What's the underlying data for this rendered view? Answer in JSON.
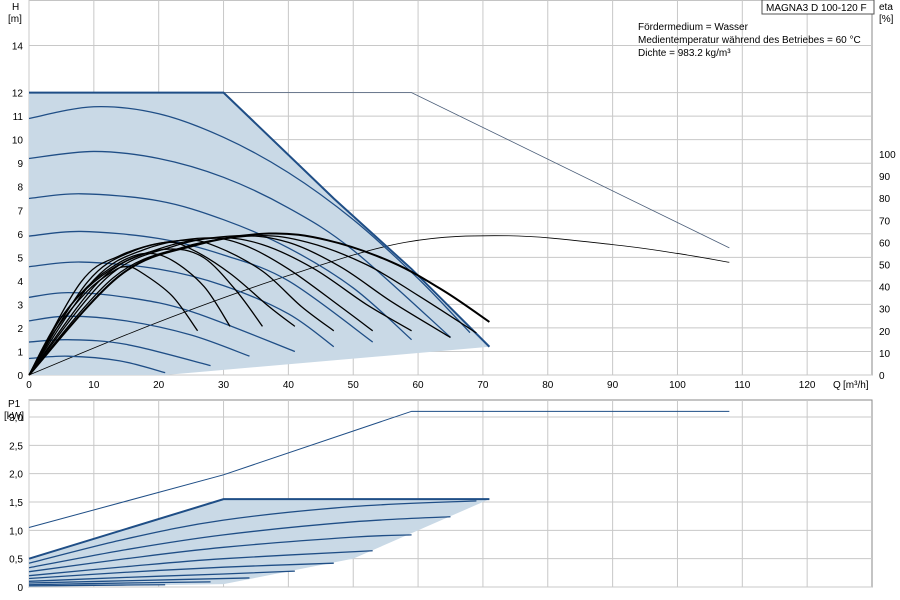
{
  "model_label": "MAGNA3 D 100-120 F",
  "medium_info": [
    "Fördermedium = Wasser",
    "Medientemperatur während des Betriebes = 60 °C",
    "Dichte = 983.2 kg/m³"
  ],
  "colors": {
    "area_fill": "#c9d9e6",
    "curve_blue": "#1f4e86",
    "curve_black": "#000000",
    "reference": "#4a5d78",
    "grid": "#c8c8c8"
  },
  "chart_data": [
    {
      "type": "line",
      "name": "head-chart",
      "ylabel": "H",
      "yunit": "[m]",
      "y2label": "eta",
      "y2unit": "[%]",
      "xlabel": "Q",
      "xunit": "[m³/h]",
      "xlim": [
        0,
        130
      ],
      "ylim": [
        0,
        15
      ],
      "y2lim": [
        0,
        100
      ],
      "x_ticks": [
        0,
        10,
        20,
        30,
        40,
        50,
        60,
        70,
        80,
        90,
        100,
        110,
        120
      ],
      "y_ticks": [
        0,
        1,
        2,
        3,
        4,
        5,
        6,
        7,
        8,
        9,
        10,
        11,
        12,
        14
      ],
      "y2_ticks": [
        0,
        10,
        20,
        30,
        40,
        50,
        60,
        70,
        80,
        90,
        100
      ],
      "grid": true,
      "operating_area": [
        [
          0,
          12
        ],
        [
          30,
          12
        ],
        [
          71,
          1.2
        ],
        [
          21,
          0
        ],
        [
          0,
          0
        ]
      ],
      "pump_curves": [
        [
          [
            0,
            12
          ],
          [
            30,
            12
          ],
          [
            47,
            7.5
          ],
          [
            59,
            4.5
          ],
          [
            71,
            1.2
          ]
        ],
        [
          [
            0,
            10.9
          ],
          [
            10,
            11.4
          ],
          [
            20,
            11.1
          ],
          [
            30,
            10.1
          ],
          [
            40,
            8.6
          ],
          [
            50,
            6.6
          ],
          [
            60,
            4.1
          ],
          [
            68,
            1.8
          ]
        ],
        [
          [
            0,
            9.2
          ],
          [
            10,
            9.5
          ],
          [
            20,
            9.2
          ],
          [
            30,
            8.4
          ],
          [
            40,
            7.1
          ],
          [
            50,
            5.3
          ],
          [
            65,
            1.6
          ]
        ],
        [
          [
            0,
            7.5
          ],
          [
            8,
            7.7
          ],
          [
            20,
            7.4
          ],
          [
            30,
            6.6
          ],
          [
            40,
            5.4
          ],
          [
            50,
            3.7
          ],
          [
            59,
            1.5
          ]
        ],
        [
          [
            0,
            5.9
          ],
          [
            8,
            6.1
          ],
          [
            20,
            5.8
          ],
          [
            30,
            5.1
          ],
          [
            40,
            4.0
          ],
          [
            53,
            1.4
          ]
        ],
        [
          [
            0,
            4.6
          ],
          [
            8,
            4.8
          ],
          [
            20,
            4.5
          ],
          [
            30,
            3.8
          ],
          [
            40,
            2.6
          ],
          [
            47,
            1.2
          ]
        ],
        [
          [
            0,
            3.3
          ],
          [
            6,
            3.5
          ],
          [
            15,
            3.3
          ],
          [
            25,
            2.7
          ],
          [
            41,
            1.0
          ]
        ],
        [
          [
            0,
            2.3
          ],
          [
            6,
            2.5
          ],
          [
            15,
            2.3
          ],
          [
            25,
            1.7
          ],
          [
            34,
            0.8
          ]
        ],
        [
          [
            0,
            1.4
          ],
          [
            6,
            1.5
          ],
          [
            15,
            1.3
          ],
          [
            28,
            0.4
          ]
        ],
        [
          [
            0,
            0.7
          ],
          [
            6,
            0.8
          ],
          [
            14,
            0.6
          ],
          [
            21,
            0.1
          ]
        ]
      ],
      "eta_curves": [
        [
          [
            0,
            0
          ],
          [
            8,
            42
          ],
          [
            14,
            54
          ],
          [
            21,
            60
          ],
          [
            25,
            57
          ],
          [
            31,
            46
          ],
          [
            37,
            31
          ],
          [
            41,
            22
          ]
        ],
        [
          [
            0,
            0
          ],
          [
            9,
            42
          ],
          [
            16,
            56
          ],
          [
            24,
            61
          ],
          [
            29,
            58
          ],
          [
            36,
            47
          ],
          [
            42,
            31
          ],
          [
            47,
            20
          ]
        ],
        [
          [
            0,
            0
          ],
          [
            10,
            43
          ],
          [
            18,
            57
          ],
          [
            27,
            62
          ],
          [
            33,
            59
          ],
          [
            40,
            48
          ],
          [
            48,
            31
          ],
          [
            53,
            20
          ]
        ],
        [
          [
            0,
            0
          ],
          [
            11,
            43
          ],
          [
            20,
            57
          ],
          [
            29,
            62
          ],
          [
            36,
            59
          ],
          [
            44,
            48
          ],
          [
            52,
            32
          ],
          [
            59,
            20
          ]
        ],
        [
          [
            0,
            0
          ],
          [
            12,
            44
          ],
          [
            22,
            58
          ],
          [
            32,
            63
          ],
          [
            40,
            60
          ],
          [
            48,
            49
          ],
          [
            56,
            33
          ],
          [
            65,
            17
          ]
        ],
        [
          [
            0,
            0
          ],
          [
            13,
            44
          ],
          [
            24,
            58
          ],
          [
            35,
            63
          ],
          [
            43,
            60
          ],
          [
            52,
            50
          ],
          [
            60,
            36
          ],
          [
            69,
            19
          ]
        ],
        [
          [
            0,
            0
          ],
          [
            14,
            45
          ],
          [
            26,
            59
          ],
          [
            37,
            64
          ],
          [
            46,
            61
          ],
          [
            56,
            51
          ],
          [
            64,
            38
          ],
          [
            71,
            24
          ]
        ],
        [
          [
            0,
            0
          ],
          [
            4,
            20
          ],
          [
            9,
            38
          ],
          [
            13,
            47
          ],
          [
            15,
            49
          ],
          [
            17,
            47
          ],
          [
            22,
            36
          ],
          [
            26,
            20
          ]
        ],
        [
          [
            0,
            0
          ],
          [
            4,
            22
          ],
          [
            9,
            40
          ],
          [
            14,
            51
          ],
          [
            18,
            55
          ],
          [
            22,
            52
          ],
          [
            27,
            40
          ],
          [
            31,
            22
          ]
        ],
        [
          [
            0,
            0
          ],
          [
            5,
            26
          ],
          [
            10,
            42
          ],
          [
            16,
            53
          ],
          [
            22,
            57
          ],
          [
            27,
            53
          ],
          [
            32,
            38
          ],
          [
            36,
            22
          ]
        ]
      ],
      "reference_head": [
        [
          30,
          12
        ],
        [
          59,
          12
        ],
        [
          108,
          5.4
        ]
      ],
      "reference_eta": [
        [
          0,
          0
        ],
        [
          20,
          24
        ],
        [
          40,
          45
        ],
        [
          58,
          60
        ],
        [
          74,
          63
        ],
        [
          90,
          59
        ],
        [
          100,
          55
        ],
        [
          108,
          51
        ]
      ]
    },
    {
      "type": "line",
      "name": "power-chart",
      "ylabel": "P1",
      "yunit": "[kW]",
      "xlim": [
        0,
        130
      ],
      "ylim": [
        0,
        3.3
      ],
      "x_ticks": [
        0,
        10,
        20,
        30,
        40,
        50,
        60,
        70,
        80,
        90,
        100,
        110,
        120
      ],
      "y_ticks": [
        "0",
        "0,5",
        "1,0",
        "1,5",
        "2,0",
        "2,5",
        "3,0"
      ],
      "y_values": [
        0,
        0.5,
        1.0,
        1.5,
        2.0,
        2.5,
        3.0
      ],
      "grid": true,
      "operating_area": [
        [
          0,
          0.5
        ],
        [
          30,
          1.55
        ],
        [
          71,
          1.55
        ],
        [
          50,
          0.5
        ],
        [
          30,
          0.05
        ],
        [
          0,
          0
        ]
      ],
      "power_curves": [
        [
          [
            0,
            0.5
          ],
          [
            30,
            1.55
          ],
          [
            71,
            1.55
          ]
        ],
        [
          [
            0,
            0.42
          ],
          [
            15,
            0.85
          ],
          [
            30,
            1.18
          ],
          [
            50,
            1.42
          ],
          [
            69,
            1.52
          ]
        ],
        [
          [
            0,
            0.34
          ],
          [
            15,
            0.66
          ],
          [
            30,
            0.92
          ],
          [
            50,
            1.15
          ],
          [
            65,
            1.24
          ]
        ],
        [
          [
            0,
            0.27
          ],
          [
            15,
            0.5
          ],
          [
            30,
            0.7
          ],
          [
            50,
            0.88
          ],
          [
            59,
            0.92
          ]
        ],
        [
          [
            0,
            0.2
          ],
          [
            15,
            0.36
          ],
          [
            30,
            0.5
          ],
          [
            53,
            0.64
          ]
        ],
        [
          [
            0,
            0.15
          ],
          [
            15,
            0.26
          ],
          [
            30,
            0.35
          ],
          [
            47,
            0.42
          ]
        ],
        [
          [
            0,
            0.1
          ],
          [
            15,
            0.17
          ],
          [
            30,
            0.23
          ],
          [
            41,
            0.28
          ]
        ],
        [
          [
            0,
            0.07
          ],
          [
            15,
            0.11
          ],
          [
            34,
            0.16
          ]
        ],
        [
          [
            0,
            0.04
          ],
          [
            15,
            0.07
          ],
          [
            28,
            0.09
          ]
        ],
        [
          [
            0,
            0.02
          ],
          [
            10,
            0.03
          ],
          [
            21,
            0.04
          ]
        ]
      ],
      "reference_power": [
        [
          0,
          1.05
        ],
        [
          30,
          1.98
        ],
        [
          59,
          3.1
        ],
        [
          108,
          3.1
        ]
      ]
    }
  ]
}
